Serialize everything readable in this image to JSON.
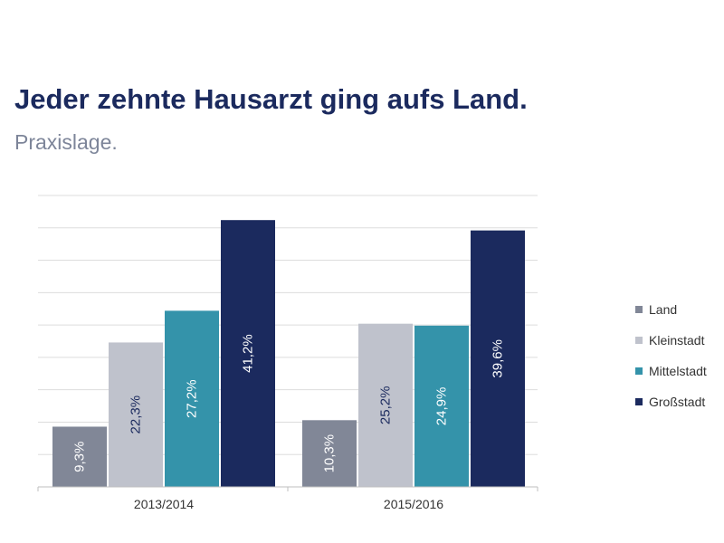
{
  "header": {
    "title": "Jeder zehnte Hausarzt ging aufs Land.",
    "subtitle": "Praxislage."
  },
  "chart_data": {
    "type": "bar",
    "title": "Jeder zehnte Hausarzt ging aufs Land.",
    "subtitle": "Praxislage.",
    "categories": [
      "2013/2014",
      "2015/2016"
    ],
    "series": [
      {
        "name": "Land",
        "values": [
          9.3,
          10.3
        ],
        "labels": [
          "9,3%",
          "10,3%"
        ],
        "color": "#818797",
        "label_color": "#ffffff"
      },
      {
        "name": "Kleinstadt",
        "values": [
          22.3,
          25.2
        ],
        "labels": [
          "22,3%",
          "25,2%"
        ],
        "color": "#bfc2cc",
        "label_color": "#1b2a5e"
      },
      {
        "name": "Mittelstadt",
        "values": [
          27.2,
          24.9
        ],
        "labels": [
          "27,2%",
          "24,9%"
        ],
        "color": "#3493aa",
        "label_color": "#ffffff"
      },
      {
        "name": "Großstadt",
        "values": [
          41.2,
          39.6
        ],
        "labels": [
          "41,2%",
          "39,6%"
        ],
        "color": "#1b2a5e",
        "label_color": "#ffffff"
      }
    ],
    "ylim": [
      0,
      45
    ],
    "grid": true,
    "legend": "right",
    "xlabel": "",
    "ylabel": ""
  }
}
